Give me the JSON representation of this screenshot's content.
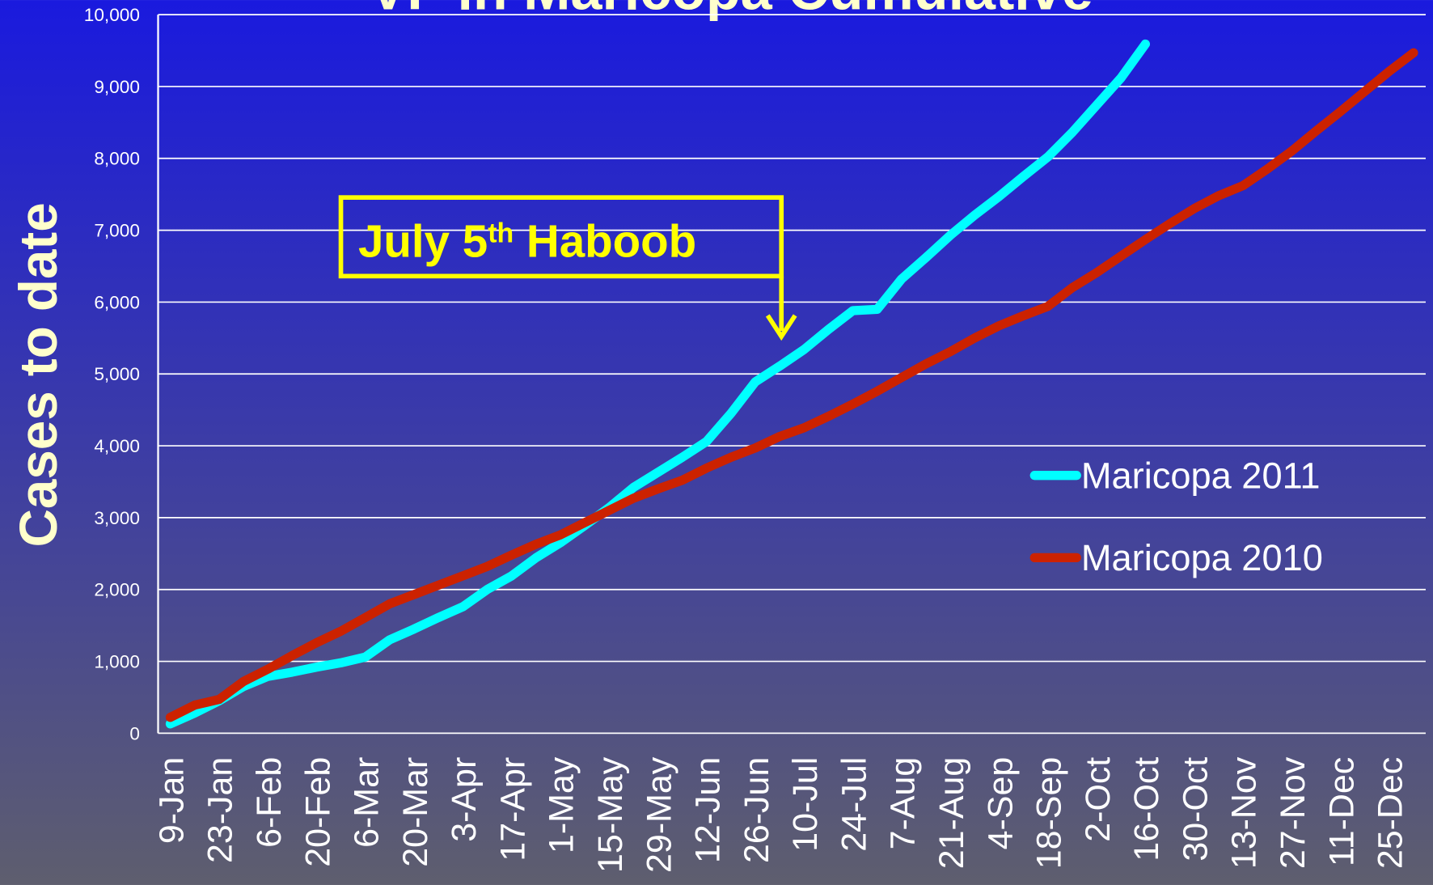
{
  "chart_data": {
    "type": "line",
    "title": "VF in Maricopa Cumulative",
    "y_label": "Cases to date",
    "annotation": {
      "text": "July 5",
      "superscript": "th",
      "rest": " Haboob"
    },
    "categories": [
      "9-Jan",
      null,
      "23-Jan",
      null,
      "6-Feb",
      null,
      "20-Feb",
      null,
      "6-Mar",
      null,
      "20-Mar",
      null,
      "3-Apr",
      null,
      "17-Apr",
      null,
      "1-May",
      null,
      "15-May",
      null,
      "29-May",
      null,
      "12-Jun",
      null,
      "26-Jun",
      null,
      "10-Jul",
      null,
      "24-Jul",
      null,
      "7-Aug",
      null,
      "21-Aug",
      null,
      "4-Sep",
      null,
      "18-Sep",
      null,
      "2-Oct",
      null,
      "16-Oct",
      null,
      "30-Oct",
      null,
      "13-Nov",
      null,
      "27-Nov",
      null,
      "11-Dec",
      null,
      "25-Dec",
      null
    ],
    "series": [
      {
        "name": "Maricopa 2011",
        "color": "#00ffff",
        "values": [
          130,
          280,
          450,
          650,
          790,
          850,
          920,
          980,
          1060,
          1300,
          1450,
          1610,
          1760,
          2000,
          2190,
          2440,
          2650,
          2890,
          3140,
          3420,
          3630,
          3840,
          4060,
          4450,
          4890,
          5110,
          5340,
          5620,
          5880,
          5900,
          6320,
          6620,
          6930,
          7210,
          7470,
          7750,
          8020,
          8360,
          8740,
          9120,
          9590,
          null,
          null,
          null,
          null,
          null,
          null,
          null,
          null,
          null,
          null,
          null
        ]
      },
      {
        "name": "Maricopa 2010",
        "color": "#cc2200",
        "values": [
          220,
          390,
          470,
          720,
          890,
          1080,
          1260,
          1420,
          1610,
          1800,
          1930,
          2060,
          2190,
          2320,
          2480,
          2630,
          2760,
          2930,
          3100,
          3270,
          3400,
          3520,
          3690,
          3840,
          3970,
          4130,
          4250,
          4410,
          4580,
          4760,
          4950,
          5140,
          5310,
          5500,
          5670,
          5810,
          5940,
          6200,
          6410,
          6640,
          6870,
          7090,
          7300,
          7480,
          7620,
          7850,
          8100,
          8380,
          8650,
          8930,
          9210,
          9470
        ]
      }
    ],
    "ylim": [
      0,
      10000
    ],
    "yticks": [
      0,
      {
        "value": 1000,
        "label": "1,000"
      },
      {
        "value": 2000,
        "label": "2,000"
      },
      {
        "value": 3000,
        "label": "3,000"
      },
      {
        "value": 4000,
        "label": "4,000"
      },
      {
        "value": 5000,
        "label": "5,000"
      },
      {
        "value": 6000,
        "label": "6,000"
      },
      {
        "value": 7000,
        "label": "7,000"
      },
      {
        "value": 8000,
        "label": "8,000"
      },
      {
        "value": 9000,
        "label": "9,000"
      },
      {
        "value": 10000,
        "label": "10,000"
      }
    ],
    "grid": true,
    "legend": "right"
  }
}
